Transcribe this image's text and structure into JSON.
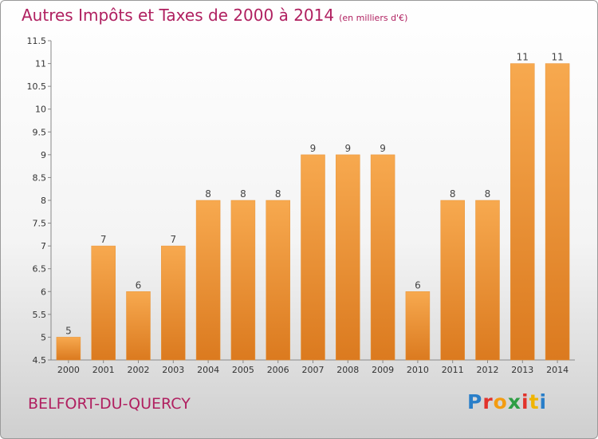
{
  "header": {
    "title": "Autres Impôts et Taxes de 2000 à 2014",
    "unit": "(en milliers d'€)"
  },
  "footer": {
    "town": "BELFORT-DU-QUERCY",
    "logo": "Proxiti",
    "logo_colors": [
      "#2a7fc9",
      "#e2322b",
      "#f39c12",
      "#2e9e44",
      "#e2322b",
      "#f0b400",
      "#2a7fc9"
    ]
  },
  "chart_data": {
    "type": "bar",
    "title": "Autres Impôts et Taxes de 2000 à 2014",
    "categories": [
      "2000",
      "2001",
      "2002",
      "2003",
      "2004",
      "2005",
      "2006",
      "2007",
      "2008",
      "2009",
      "2010",
      "2011",
      "2012",
      "2013",
      "2014"
    ],
    "values": [
      5,
      7,
      6,
      7,
      8,
      8,
      8,
      9,
      9,
      9,
      6,
      8,
      8,
      11,
      11
    ],
    "ylim": [
      4.5,
      11.5
    ],
    "yticks": [
      "4.5",
      "5",
      "5.5",
      "6",
      "6.5",
      "7",
      "7.5",
      "8",
      "8.5",
      "9",
      "9.5",
      "10",
      "10.5",
      "11",
      "11.5"
    ],
    "grid": false,
    "bar_color": "#f39c3d"
  }
}
